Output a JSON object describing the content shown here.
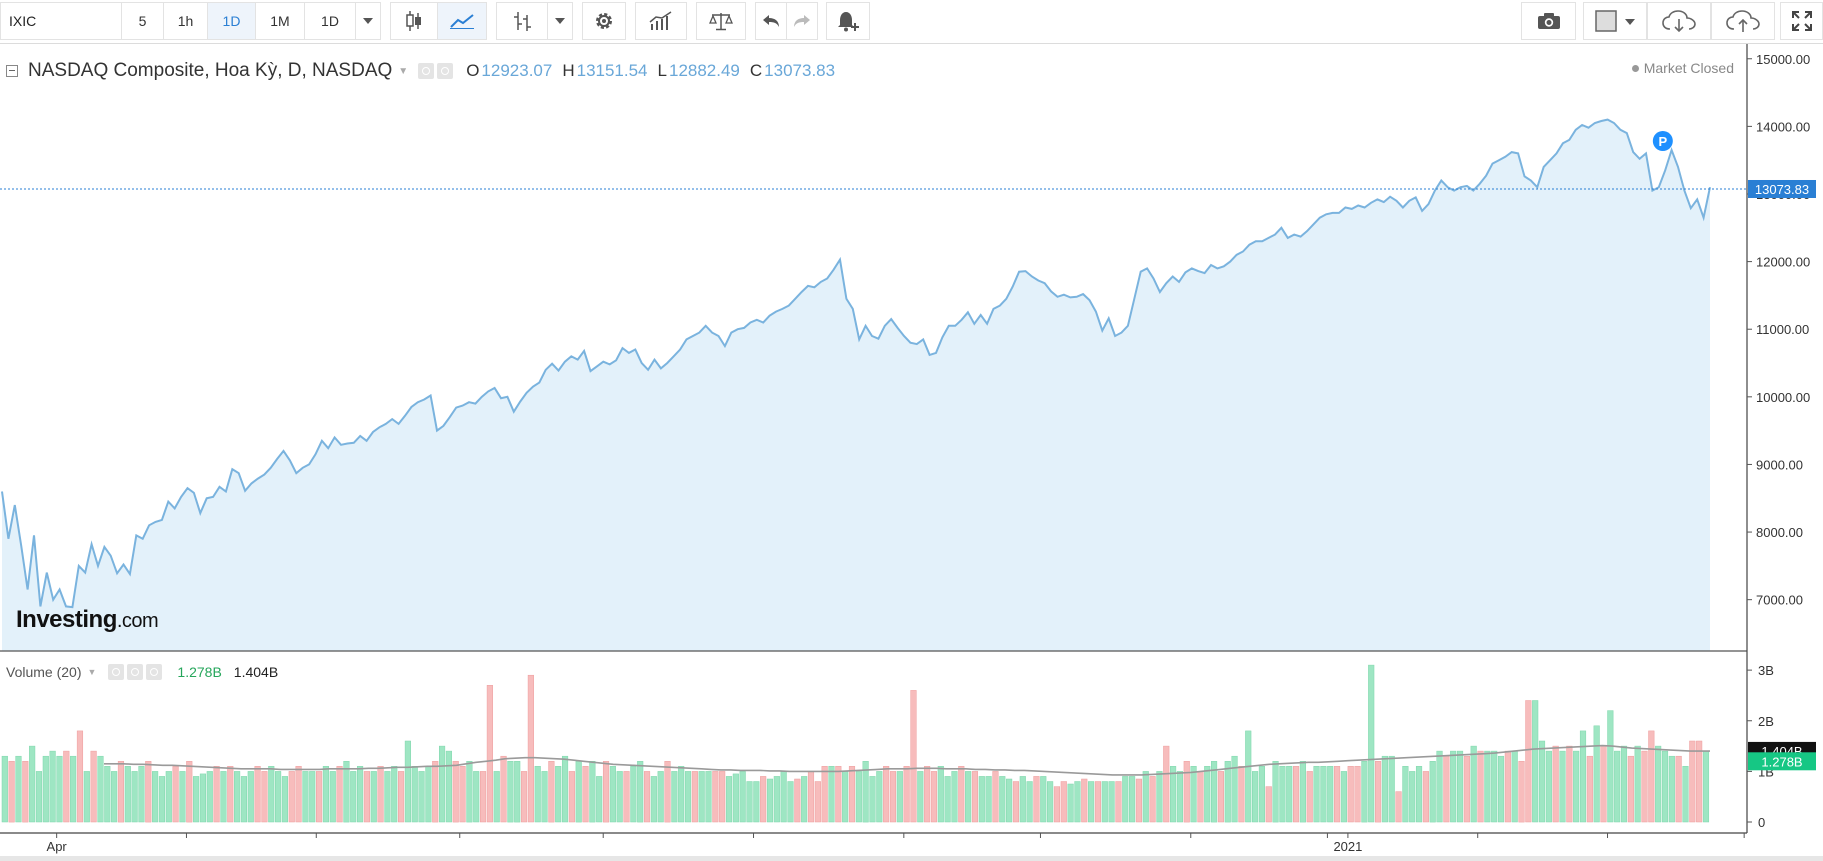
{
  "toolbar": {
    "symbol": "IXIC",
    "intervals": [
      "5",
      "1h",
      "1D",
      "1M",
      "1D"
    ],
    "active_interval": "1D",
    "icons": [
      "chevron-down-icon",
      "candlestick-icon",
      "line-chart-icon",
      "bar-chart-icon",
      "gear-icon",
      "indicators-icon",
      "compare-scale-icon",
      "undo-icon",
      "redo-icon",
      "alert-bell-icon",
      "camera-icon",
      "layout-square-icon",
      "cloud-download-icon",
      "cloud-upload-icon",
      "fullscreen-icon"
    ]
  },
  "legend": {
    "title": "NASDAQ Composite, Hoa Kỳ, D, NASDAQ",
    "open_key": "O",
    "open": "12923.07",
    "high_key": "H",
    "high": "13151.54",
    "low_key": "L",
    "low": "12882.49",
    "close_key": "C",
    "close": "13073.83",
    "market_status": "Market Closed"
  },
  "volume_legend": {
    "label": "Volume (20)",
    "value": "1.278B",
    "ma_value": "1.404B"
  },
  "watermark": {
    "brand": "Investing",
    "suffix": ".com"
  },
  "colors": {
    "line": "#7ab3de",
    "area": "#e3f1fa",
    "vol_up": "#9ee6c3",
    "vol_down": "#f7bcbc",
    "vol_ma": "#9a9a9a",
    "price_tag": "#2a7fd4",
    "vol_tag_up": "#16c784",
    "marker": "#1e90ff"
  },
  "chart_data": {
    "type": "area",
    "price": {
      "ylim": [
        6300,
        15100
      ],
      "yticks": [
        7000,
        8000,
        9000,
        10000,
        11000,
        12000,
        13000,
        14000,
        15000
      ],
      "ytick_labels": [
        "7000.00",
        "8000.00",
        "9000.00",
        "10000.00",
        "11000.00",
        "12000.00",
        "13000.00",
        "14000.00",
        "15000.00"
      ],
      "last_value": 13073.83,
      "last_label": "13073.83",
      "marker_label": "P",
      "series": [
        8600,
        7900,
        8400,
        7800,
        7150,
        7950,
        6900,
        7400,
        7000,
        7150,
        6900,
        6890,
        7500,
        7400,
        7820,
        7500,
        7780,
        7650,
        7390,
        7520,
        7380,
        7950,
        7900,
        8100,
        8150,
        8180,
        8450,
        8350,
        8520,
        8650,
        8580,
        8280,
        8500,
        8520,
        8670,
        8600,
        8930,
        8870,
        8610,
        8720,
        8790,
        8850,
        8950,
        9080,
        9200,
        9060,
        8870,
        8950,
        9000,
        9150,
        9350,
        9240,
        9400,
        9290,
        9310,
        9320,
        9420,
        9350,
        9480,
        9550,
        9600,
        9670,
        9600,
        9720,
        9850,
        9920,
        9960,
        10020,
        9500,
        9570,
        9700,
        9840,
        9870,
        9920,
        9900,
        10000,
        10080,
        10130,
        9980,
        10000,
        9780,
        9930,
        10060,
        10150,
        10210,
        10400,
        10490,
        10390,
        10520,
        10600,
        10550,
        10680,
        10380,
        10450,
        10520,
        10480,
        10540,
        10720,
        10650,
        10700,
        10500,
        10400,
        10550,
        10420,
        10500,
        10600,
        10700,
        10850,
        10900,
        10950,
        11050,
        10950,
        10900,
        10750,
        10950,
        11000,
        11020,
        11100,
        11140,
        11100,
        11200,
        11260,
        11300,
        11350,
        11450,
        11550,
        11640,
        11620,
        11700,
        11750,
        11880,
        12030,
        11450,
        11300,
        10850,
        11050,
        10900,
        10860,
        11050,
        11150,
        11020,
        10900,
        10800,
        10780,
        10850,
        10620,
        10650,
        10880,
        11050,
        11050,
        11140,
        11250,
        11080,
        11210,
        11080,
        11300,
        11350,
        11450,
        11630,
        11850,
        11860,
        11780,
        11720,
        11680,
        11560,
        11480,
        11510,
        11470,
        11480,
        11520,
        11430,
        11260,
        10980,
        11160,
        10900,
        10950,
        11050,
        11450,
        11850,
        11900,
        11750,
        11550,
        11680,
        11780,
        11700,
        11840,
        11900,
        11860,
        11830,
        11950,
        11900,
        11930,
        12000,
        12100,
        12150,
        12250,
        12300,
        12300,
        12350,
        12400,
        12500,
        12350,
        12400,
        12370,
        12450,
        12550,
        12650,
        12700,
        12720,
        12720,
        12800,
        12780,
        12830,
        12800,
        12870,
        12920,
        12880,
        12960,
        12900,
        12800,
        12900,
        12950,
        12750,
        12850,
        13050,
        13200,
        13100,
        13050,
        13100,
        13120,
        13050,
        13150,
        13270,
        13450,
        13500,
        13550,
        13620,
        13600,
        13260,
        13200,
        13100,
        13400,
        13500,
        13600,
        13750,
        13800,
        13950,
        14020,
        13980,
        14050,
        14080,
        14100,
        14050,
        13950,
        13900,
        13620,
        13520,
        13600,
        13050,
        13100,
        13350,
        13650,
        13400,
        13050,
        12790,
        12920,
        12650,
        13100
      ]
    },
    "volume": {
      "ylim": [
        0,
        3.2
      ],
      "yticks": [
        0,
        1,
        2,
        3
      ],
      "ytick_labels": [
        "0",
        "1B",
        "2B",
        "3B"
      ],
      "unit": "B",
      "last_value": 1.278,
      "last_label": "1.278B",
      "ma_last_value": 1.404,
      "ma_last_label": "1.404B",
      "values": [
        1.3,
        1.2,
        1.3,
        1.2,
        1.5,
        1.0,
        1.3,
        1.4,
        1.3,
        1.4,
        1.3,
        1.8,
        1.0,
        1.4,
        1.3,
        1.1,
        1.0,
        1.2,
        1.1,
        1.0,
        1.1,
        1.2,
        1.0,
        0.9,
        1.0,
        1.1,
        1.0,
        1.2,
        0.9,
        0.95,
        1.0,
        1.1,
        1.0,
        1.1,
        1.0,
        0.9,
        1.0,
        1.1,
        1.0,
        1.1,
        1.0,
        0.9,
        1.0,
        1.1,
        1.0,
        1.0,
        1.0,
        1.1,
        1.0,
        1.1,
        1.2,
        1.0,
        1.1,
        1.0,
        1.0,
        1.1,
        1.0,
        1.1,
        1.0,
        1.6,
        1.1,
        1.0,
        1.1,
        1.2,
        1.5,
        1.4,
        1.2,
        1.1,
        1.2,
        1.0,
        1.0,
        2.7,
        1.0,
        1.3,
        1.2,
        1.2,
        1.0,
        2.9,
        1.1,
        1.0,
        1.2,
        1.1,
        1.3,
        1.0,
        1.2,
        1.1,
        1.2,
        0.9,
        1.2,
        1.1,
        1.0,
        1.0,
        1.1,
        1.2,
        1.0,
        0.9,
        1.0,
        1.2,
        1.0,
        1.1,
        1.0,
        1.0,
        1.0,
        1.0,
        1.0,
        1.0,
        0.9,
        0.95,
        1.0,
        0.8,
        0.8,
        0.9,
        0.85,
        0.9,
        1.0,
        0.8,
        0.85,
        0.9,
        1.0,
        0.8,
        1.1,
        1.1,
        1.1,
        1.0,
        1.1,
        1.0,
        1.2,
        0.9,
        1.0,
        1.1,
        1.0,
        1.0,
        1.1,
        2.6,
        1.0,
        1.1,
        1.0,
        1.1,
        0.9,
        1.0,
        1.1,
        1.0,
        1.0,
        0.9,
        0.9,
        1.0,
        0.9,
        0.85,
        0.8,
        0.9,
        0.8,
        0.9,
        0.9,
        0.8,
        0.7,
        0.8,
        0.75,
        0.8,
        0.85,
        0.8,
        0.8,
        0.8,
        0.8,
        0.8,
        0.9,
        0.9,
        0.85,
        1.0,
        0.9,
        1.0,
        1.5,
        1.1,
        1.0,
        1.2,
        1.1,
        1.0,
        1.1,
        1.2,
        1.0,
        1.2,
        1.3,
        1.1,
        1.8,
        1.0,
        1.1,
        0.7,
        1.2,
        1.1,
        1.1,
        1.1,
        1.2,
        1.0,
        1.1,
        1.1,
        1.1,
        1.1,
        1.0,
        1.1,
        1.1,
        1.2,
        3.1,
        1.2,
        1.3,
        1.3,
        0.6,
        1.1,
        1.0,
        1.1,
        1.0,
        1.2,
        1.4,
        1.3,
        1.4,
        1.4,
        1.3,
        1.5,
        1.4,
        1.4,
        1.4,
        1.3,
        1.4,
        1.4,
        1.2,
        2.4,
        2.4,
        1.6,
        1.4,
        1.5,
        1.4,
        1.5,
        1.4,
        1.8,
        1.3,
        1.9,
        1.5,
        2.2,
        1.4,
        1.5,
        1.3,
        1.5,
        1.4,
        1.8,
        1.5,
        1.4,
        1.3,
        1.3,
        1.1,
        1.6,
        1.6,
        1.4
      ],
      "up": [
        1,
        0,
        1,
        0,
        1,
        1,
        1,
        1,
        1,
        0,
        1,
        0,
        1,
        0,
        1,
        1,
        1,
        0,
        1,
        1,
        1,
        0,
        1,
        1,
        1,
        0,
        1,
        0,
        1,
        1,
        1,
        0,
        1,
        0,
        1,
        1,
        1,
        0,
        0,
        1,
        1,
        1,
        0,
        0,
        1,
        1,
        0,
        1,
        1,
        0,
        1,
        1,
        1,
        0,
        1,
        0,
        1,
        1,
        0,
        1,
        1,
        1,
        1,
        0,
        1,
        1,
        0,
        0,
        1,
        1,
        0,
        0,
        1,
        0,
        1,
        1,
        0,
        0,
        1,
        1,
        0,
        1,
        1,
        0,
        1,
        0,
        1,
        1,
        0,
        1,
        1,
        0,
        1,
        1,
        0,
        1,
        1,
        0,
        1,
        1,
        1,
        0,
        1,
        1,
        0,
        0,
        1,
        1,
        1,
        1,
        1,
        0,
        1,
        1,
        1,
        1,
        0,
        1,
        0,
        0,
        0,
        1,
        0,
        1,
        0,
        1,
        1,
        1,
        1,
        0,
        0,
        1,
        0,
        0,
        1,
        0,
        0,
        1,
        1,
        1,
        0,
        1,
        0,
        1,
        1,
        0,
        1,
        1,
        0,
        1,
        1,
        0,
        1,
        1,
        0,
        0,
        1,
        1,
        0,
        1,
        0,
        1,
        1,
        0,
        1,
        1,
        0,
        1,
        0,
        1,
        0,
        1,
        1,
        0,
        1,
        0,
        1,
        1,
        0,
        1,
        1,
        0,
        1,
        1,
        1,
        0,
        1,
        1,
        1,
        0,
        1,
        0,
        1,
        1,
        1,
        0,
        1,
        0,
        0,
        1,
        1,
        0,
        1,
        1,
        0,
        1,
        1,
        1,
        0,
        1,
        1,
        0,
        1,
        1,
        0,
        1,
        0,
        1,
        1,
        1,
        0,
        1,
        0,
        0,
        1,
        1,
        1,
        0,
        1,
        0,
        1,
        1,
        0,
        1,
        0,
        1,
        1,
        1,
        0,
        1,
        0,
        0,
        1,
        1,
        1,
        0,
        1,
        0,
        0,
        1,
        1
      ],
      "ma": [
        1.15,
        1.15,
        1.15,
        1.14,
        1.14,
        1.13,
        1.12,
        1.12,
        1.11,
        1.1,
        1.09,
        1.08,
        1.07,
        1.06,
        1.05,
        1.05,
        1.05,
        1.05,
        1.04,
        1.04,
        1.04,
        1.04,
        1.04,
        1.05,
        1.05,
        1.05,
        1.05,
        1.06,
        1.06,
        1.07,
        1.08,
        1.08,
        1.09,
        1.1,
        1.1,
        1.11,
        1.12,
        1.15,
        1.18,
        1.2,
        1.22,
        1.25,
        1.26,
        1.27,
        1.27,
        1.26,
        1.25,
        1.24,
        1.22,
        1.2,
        1.18,
        1.16,
        1.14,
        1.13,
        1.12,
        1.11,
        1.1,
        1.09,
        1.08,
        1.07,
        1.06,
        1.05,
        1.04,
        1.03,
        1.03,
        1.02,
        1.02,
        1.02,
        1.01,
        1.01,
        1.0,
        1.0,
        1.0,
        1.0,
        1.0,
        1.0,
        1.01,
        1.02,
        1.03,
        1.04,
        1.05,
        1.05,
        1.05,
        1.06,
        1.06,
        1.06,
        1.05,
        1.05,
        1.05,
        1.04,
        1.04,
        1.03,
        1.03,
        1.02,
        1.02,
        1.01,
        1.0,
        0.99,
        0.98,
        0.97,
        0.96,
        0.95,
        0.94,
        0.93,
        0.93,
        0.93,
        0.93,
        0.94,
        0.95,
        0.96,
        0.97,
        0.98,
        1.0,
        1.02,
        1.04,
        1.06,
        1.08,
        1.1,
        1.12,
        1.14,
        1.15,
        1.16,
        1.17,
        1.18,
        1.18,
        1.19,
        1.2,
        1.21,
        1.22,
        1.23,
        1.24,
        1.25,
        1.26,
        1.27,
        1.28,
        1.29,
        1.3,
        1.31,
        1.32,
        1.33,
        1.34,
        1.35,
        1.36,
        1.38,
        1.4,
        1.42,
        1.44,
        1.45,
        1.46,
        1.47,
        1.48,
        1.49,
        1.5,
        1.51,
        1.5,
        1.48,
        1.46,
        1.45,
        1.44,
        1.43,
        1.42,
        1.41,
        1.4,
        1.4,
        1.4
      ]
    },
    "x_ticks": [
      {
        "index": 8,
        "label": "Apr"
      },
      {
        "index": 197,
        "label": "2021"
      }
    ],
    "x_minor_ticks": [
      27,
      46,
      67,
      88,
      110,
      132,
      152,
      174,
      194,
      216,
      235,
      255
    ]
  }
}
